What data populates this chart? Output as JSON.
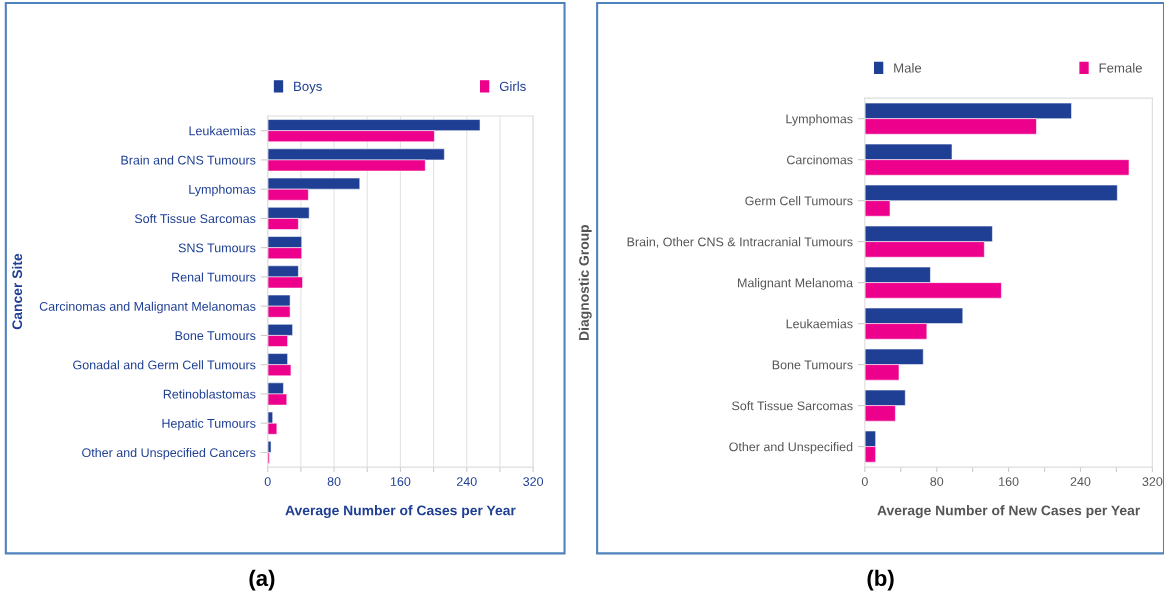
{
  "chart_data": [
    {
      "type": "bar",
      "orientation": "horizontal",
      "ylabel": "Cancer Site",
      "xlabel": "Average Number of Cases per Year",
      "categories": [
        "Leukaemias",
        "Brain and CNS Tumours",
        "Lymphomas",
        "Soft Tissue Sarcomas",
        "SNS Tumours",
        "Renal Tumours",
        "Carcinomas and Malignant Melanomas",
        "Bone Tumours",
        "Gonadal and Germ Cell Tumours",
        "Retinoblastomas",
        "Hepatic Tumours",
        "Other and Unspecified Cancers"
      ],
      "series": [
        {
          "name": "Boys",
          "color": "#1f3f94",
          "values": [
            256,
            213,
            111,
            50,
            41,
            37,
            27,
            30,
            24,
            19,
            6,
            4
          ]
        },
        {
          "name": "Girls",
          "color": "#ec008c",
          "values": [
            201,
            190,
            49,
            37,
            41,
            42,
            27,
            24,
            28,
            23,
            11,
            2
          ]
        }
      ],
      "xlim": [
        0,
        320
      ],
      "xticks": [
        0,
        {
          "value": 40,
          "label": null
        },
        80,
        {
          "value": 120,
          "label": null
        },
        160,
        {
          "value": 200,
          "label": null
        },
        240,
        {
          "value": 280,
          "label": null
        },
        320
      ],
      "grid": "x",
      "legend": "top",
      "annotations": [
        "(a)"
      ]
    },
    {
      "type": "bar",
      "orientation": "horizontal",
      "ylabel": "Diagnostic Group",
      "xlabel": "Average Number of New Cases per Year",
      "categories": [
        "Lymphomas",
        "Carcinomas",
        "Germ Cell Tumours",
        "Brain, Other CNS & Intracranial Tumours",
        "Malignant Melanoma",
        "Leukaemias",
        "Bone Tumours",
        "Soft Tissue Sarcomas",
        "Other and Unspecified"
      ],
      "series": [
        {
          "name": "Male",
          "color": "#1f3f94",
          "values": [
            230,
            97,
            281,
            142,
            73,
            109,
            65,
            45,
            12
          ]
        },
        {
          "name": "Female",
          "color": "#ec008c",
          "values": [
            191,
            294,
            28,
            133,
            152,
            69,
            38,
            34,
            12
          ]
        }
      ],
      "xlim": [
        0,
        320
      ],
      "xticks": [
        0,
        {
          "value": 40,
          "label": null
        },
        80,
        {
          "value": 120,
          "label": null
        },
        160,
        {
          "value": 200,
          "label": null
        },
        240,
        {
          "value": 280,
          "label": null
        },
        320
      ],
      "legend": "top",
      "annotations": [
        "(b)"
      ]
    }
  ]
}
